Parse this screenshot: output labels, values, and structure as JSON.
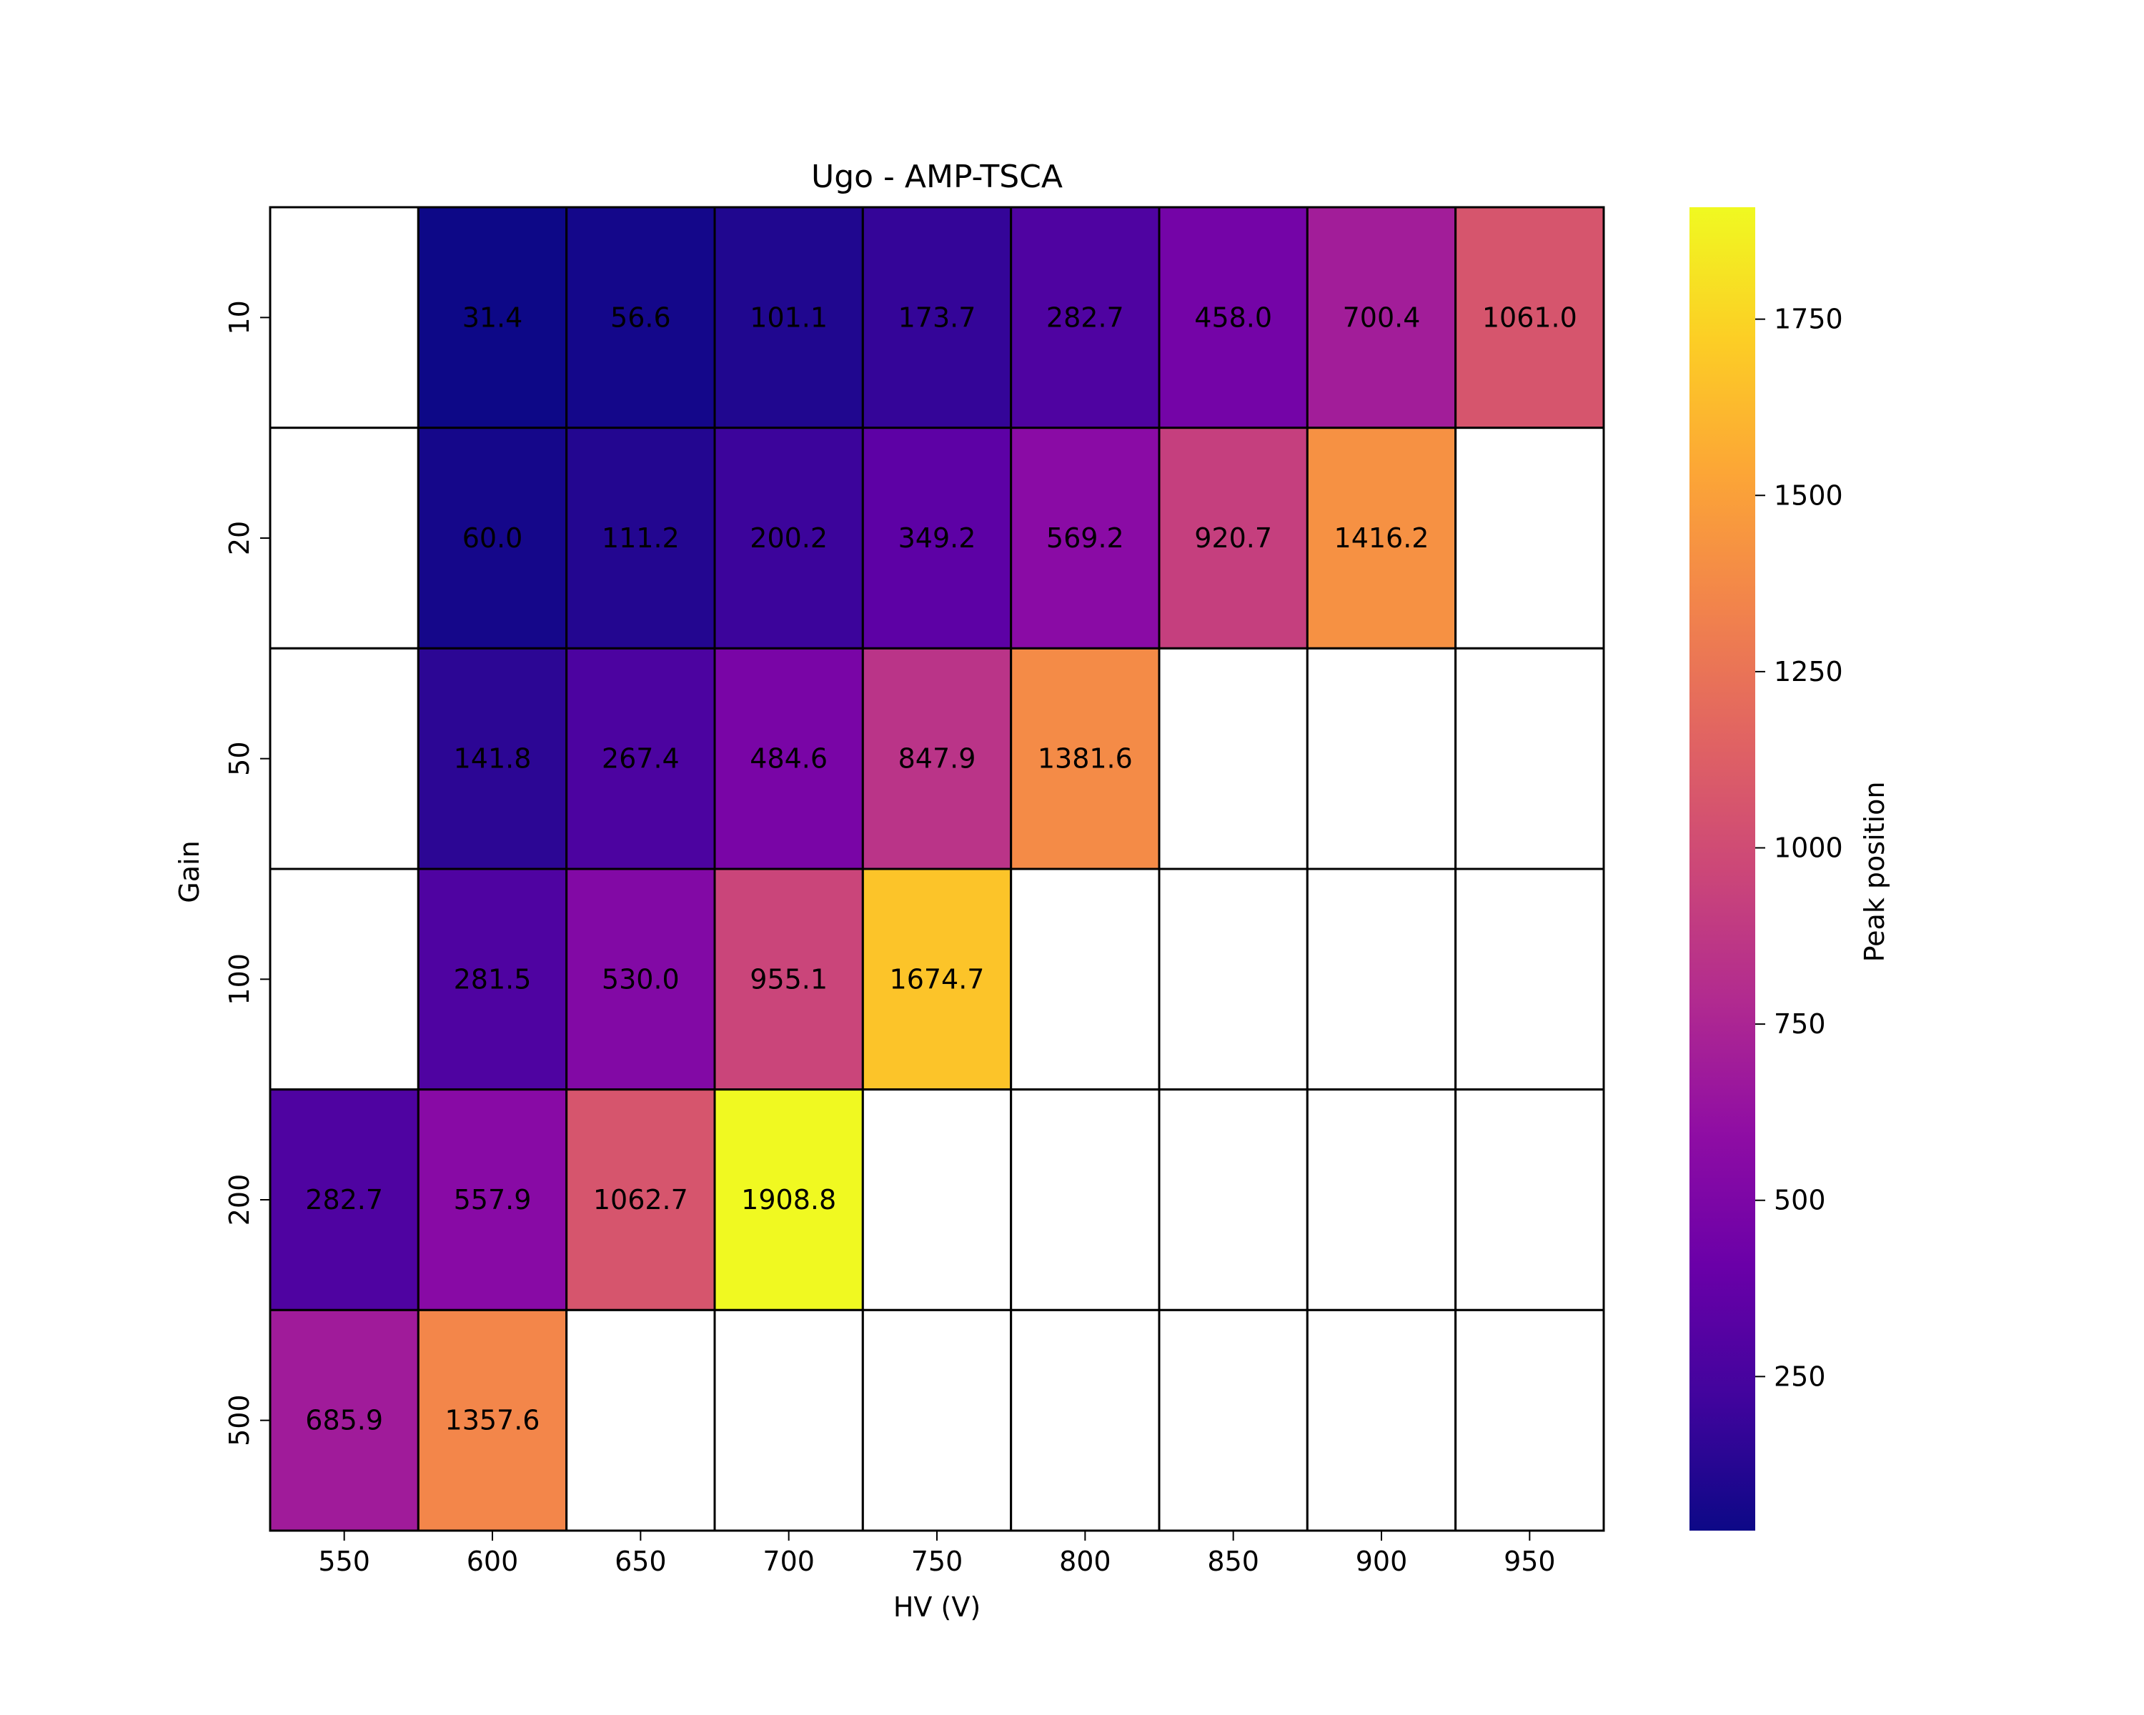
{
  "chart_data": {
    "type": "heatmap",
    "title": "Ugo - AMP-TSCA",
    "xlabel": "HV (V)",
    "ylabel": "Gain",
    "x": [
      "550",
      "600",
      "650",
      "700",
      "750",
      "800",
      "850",
      "900",
      "950"
    ],
    "y": [
      "10",
      "20",
      "50",
      "100",
      "200",
      "500"
    ],
    "values": [
      [
        null,
        31.4,
        56.6,
        101.1,
        173.7,
        282.7,
        458.0,
        700.4,
        1061.0
      ],
      [
        null,
        60.0,
        111.2,
        200.2,
        349.2,
        569.2,
        920.7,
        1416.2,
        null
      ],
      [
        null,
        141.8,
        267.4,
        484.6,
        847.9,
        1381.6,
        null,
        null,
        null
      ],
      [
        null,
        281.5,
        530.0,
        955.1,
        1674.7,
        null,
        null,
        null,
        null
      ],
      [
        282.7,
        557.9,
        1062.7,
        1908.8,
        null,
        null,
        null,
        null,
        null
      ],
      [
        685.9,
        1357.6,
        null,
        null,
        null,
        null,
        null,
        null,
        null
      ]
    ],
    "colormap": "plasma",
    "colorbar": {
      "label": "Peak position",
      "range": [
        31.4,
        1908.8
      ],
      "ticks": [
        "250",
        "500",
        "750",
        "1000",
        "1250",
        "1500",
        "1750"
      ]
    },
    "grid": true,
    "missing_color": "#ffffff",
    "edge_color": "#000000"
  }
}
